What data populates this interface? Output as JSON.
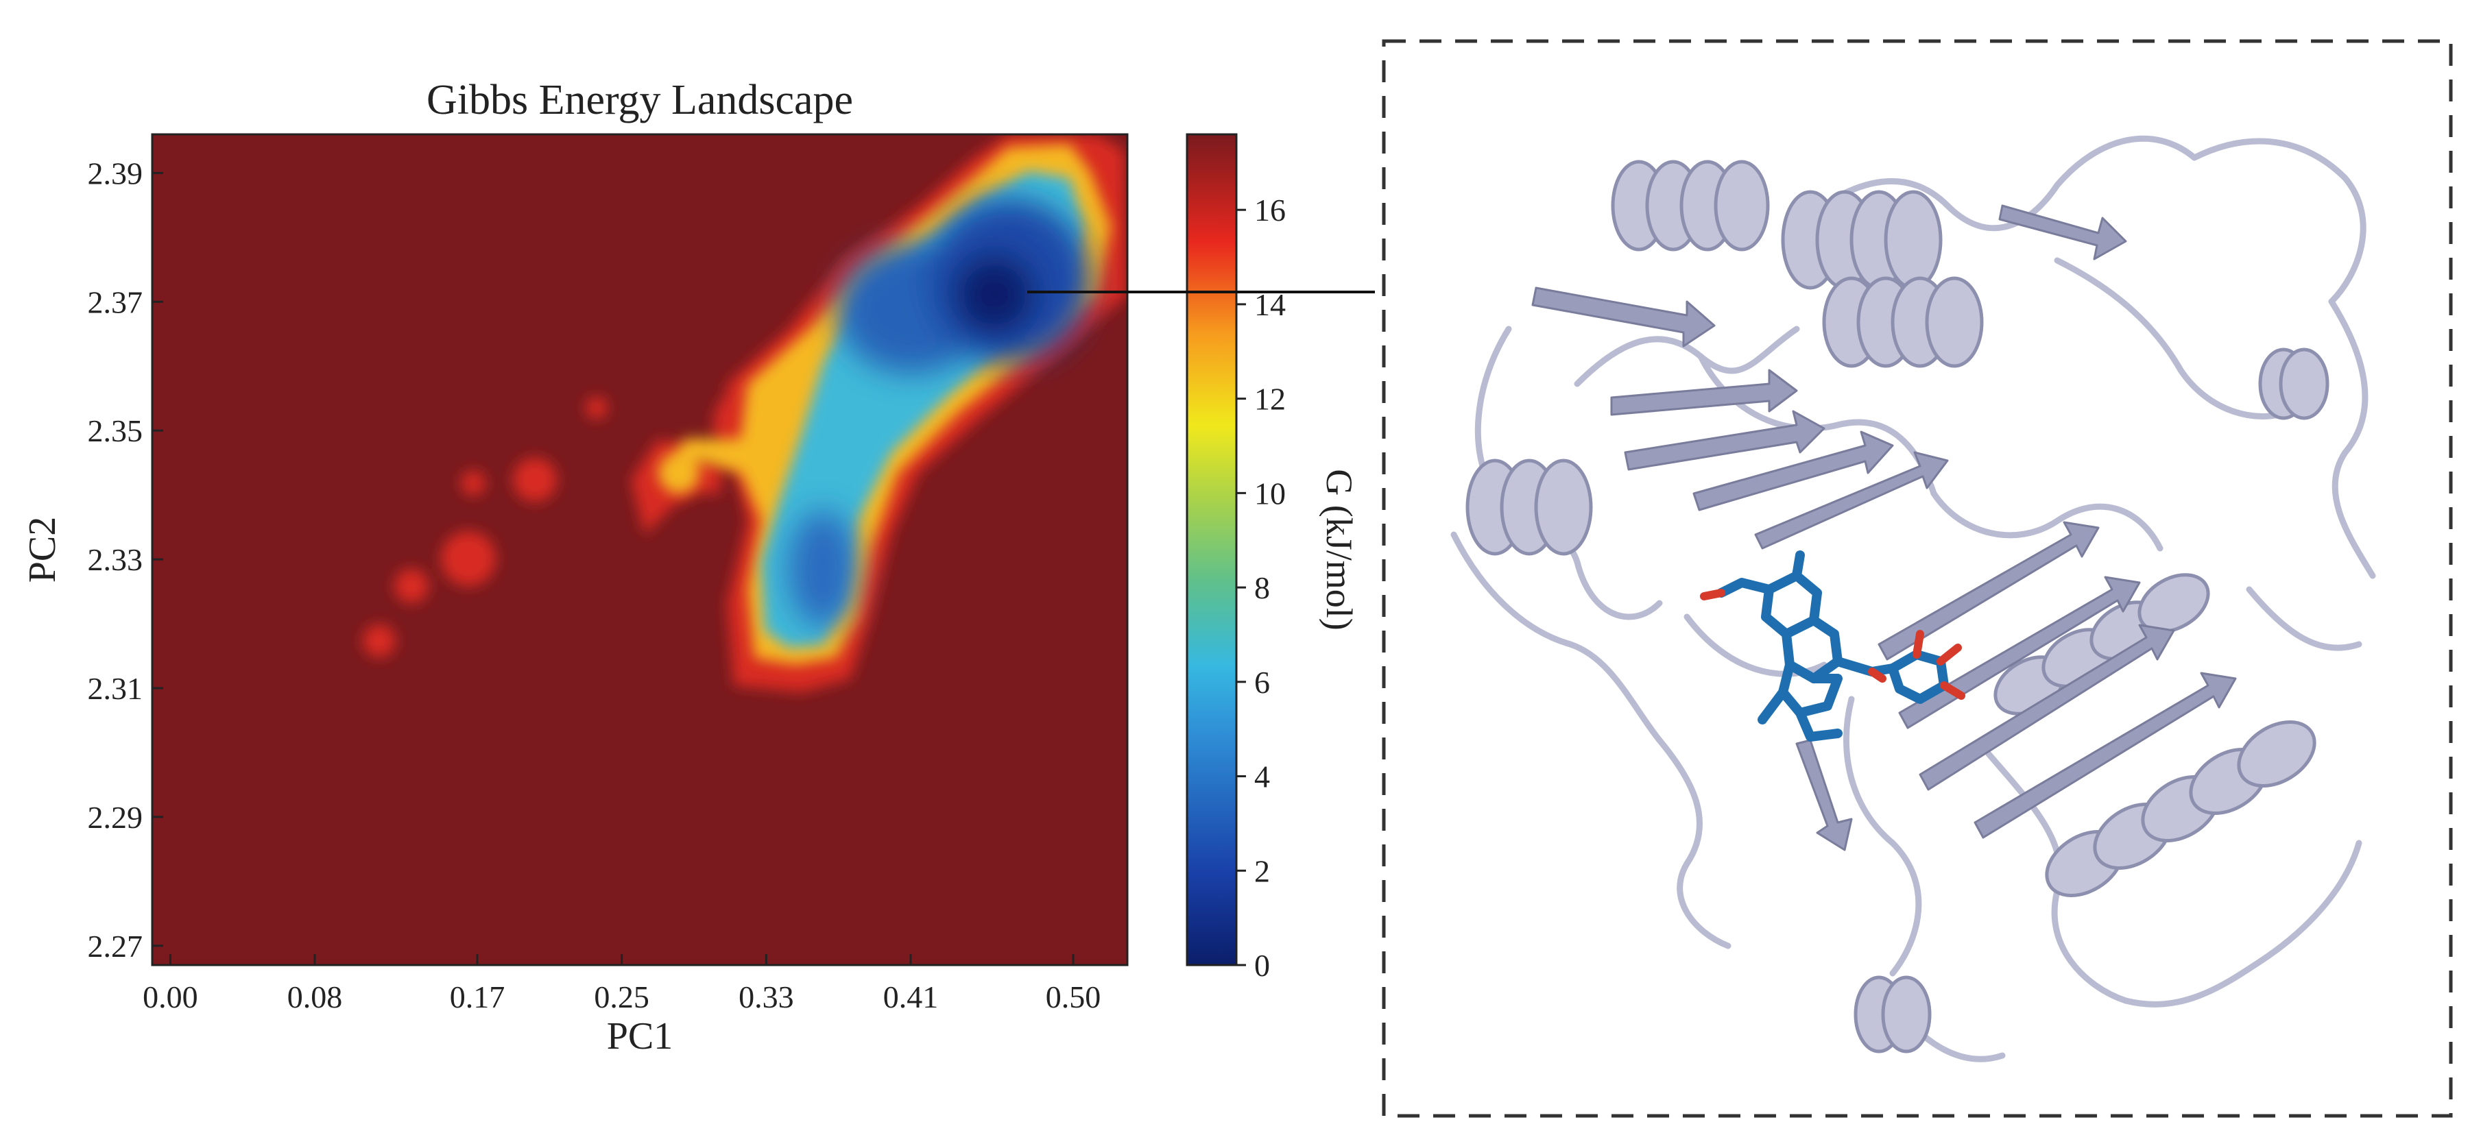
{
  "chart_data": {
    "type": "heatmap",
    "title": "Gibbs Energy Landscape",
    "xlabel": "PC1",
    "ylabel": "PC2",
    "colorbar_label": "G (kJ/mol)",
    "colormap": "jet",
    "xlim": [
      -0.01,
      0.53
    ],
    "ylim": [
      2.267,
      2.396
    ],
    "xticks": [
      0.0,
      0.08,
      0.17,
      0.25,
      0.33,
      0.41,
      0.5
    ],
    "xtick_labels": [
      "0.00",
      "0.08",
      "0.17",
      "0.25",
      "0.33",
      "0.41",
      "0.50"
    ],
    "yticks": [
      2.27,
      2.29,
      2.31,
      2.33,
      2.35,
      2.37,
      2.39
    ],
    "ytick_labels": [
      "2.27",
      "2.29",
      "2.31",
      "2.33",
      "2.35",
      "2.37",
      "2.39"
    ],
    "clim": [
      0,
      17.6
    ],
    "cbar_ticks": [
      0,
      2,
      4,
      6,
      8,
      10,
      12,
      14,
      16
    ],
    "cbar_tick_labels": [
      "0",
      "2",
      "4",
      "6",
      "8",
      "10",
      "12",
      "14",
      "16"
    ],
    "background_value": 17.6,
    "basins": [
      {
        "x": 0.445,
        "y": 2.371,
        "G": 0.0
      },
      {
        "x": 0.395,
        "y": 2.369,
        "G": 3.5
      },
      {
        "x": 0.36,
        "y": 2.328,
        "G": 3.8
      },
      {
        "x": 0.285,
        "y": 2.345,
        "G": 12.5
      },
      {
        "x": 0.205,
        "y": 2.343,
        "G": 15.8
      },
      {
        "x": 0.17,
        "y": 2.331,
        "G": 15.5
      },
      {
        "x": 0.115,
        "y": 2.318,
        "G": 15.9
      }
    ],
    "annotation": "global minimum linked to representative protein-ligand complex structure"
  },
  "colors": {
    "background": "#7a1a1e",
    "protein": "#bfc0d6",
    "ligand": "#1f6fb0",
    "ligand_oxygen": "#d63a2a",
    "frame": "#222222"
  }
}
